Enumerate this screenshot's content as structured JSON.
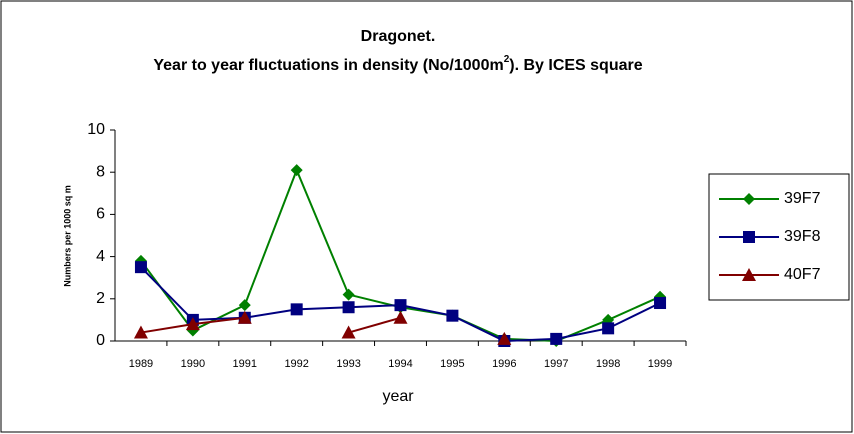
{
  "chart_data": {
    "type": "line",
    "title": "Dragonet.",
    "subtitle": [
      "Year to year fluctuations in density (No/1000m",
      "2",
      "). By ICES square"
    ],
    "x_label": "year",
    "y_label": "Numbers per 1000 sq m",
    "categories": [
      "1989",
      "1990",
      "1991",
      "1992",
      "1993",
      "1994",
      "1995",
      "1996",
      "1997",
      "1998",
      "1999"
    ],
    "series": [
      {
        "name": "39F7",
        "color": "#008000",
        "marker": "diamond",
        "values": [
          3.8,
          0.5,
          1.7,
          8.1,
          2.2,
          1.6,
          1.2,
          0.1,
          0.0,
          1.0,
          2.1
        ]
      },
      {
        "name": "39F8",
        "color": "#000080",
        "marker": "square",
        "values": [
          3.5,
          1.0,
          1.1,
          1.5,
          1.6,
          1.7,
          1.2,
          0.0,
          0.1,
          0.6,
          1.8
        ]
      },
      {
        "name": "40F7",
        "color": "#800000",
        "marker": "triangle",
        "values": [
          0.4,
          0.8,
          1.1,
          null,
          0.4,
          1.1,
          null,
          0.1,
          null,
          null,
          null
        ]
      }
    ],
    "ylim": [
      0,
      10
    ],
    "yticks": [
      0,
      2,
      4,
      6,
      8,
      10
    ],
    "grid": false,
    "legend": "right"
  }
}
